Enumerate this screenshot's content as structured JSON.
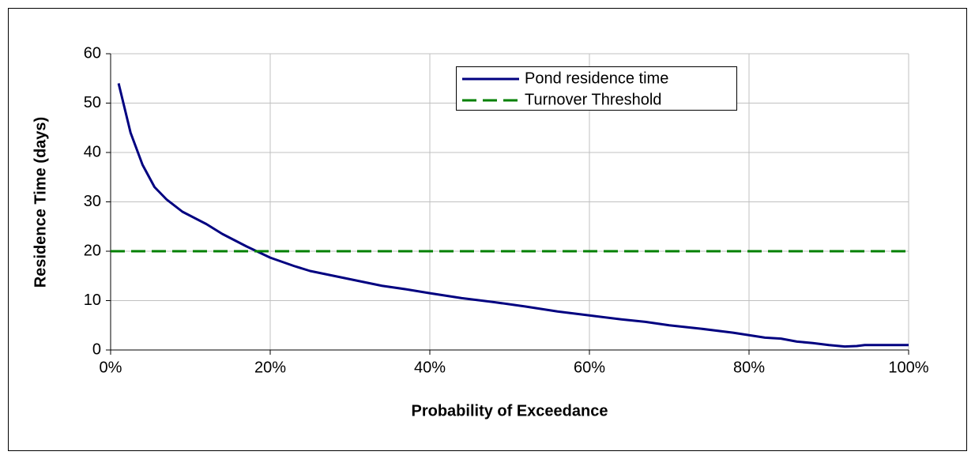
{
  "chart_data": {
    "type": "line",
    "xlabel": "Probability of Exceedance",
    "ylabel": "Residence Time (days)",
    "series": [
      {
        "name": "Pond residence time",
        "color": "#000080",
        "style": "solid",
        "x": [
          1,
          2.5,
          4,
          5.5,
          7,
          9,
          12,
          14,
          17,
          20,
          23,
          25,
          28,
          31,
          34,
          37,
          40,
          44,
          48,
          52,
          56,
          60,
          64,
          67,
          70,
          74,
          78,
          82,
          84,
          86,
          88,
          90,
          92,
          93.5,
          94.5,
          100
        ],
        "values": [
          54,
          44,
          37.5,
          33,
          30.5,
          28,
          25.5,
          23.5,
          21,
          18.7,
          17,
          16,
          15,
          14,
          13,
          12.3,
          11.5,
          10.5,
          9.7,
          8.8,
          7.8,
          7,
          6.2,
          5.7,
          5,
          4.3,
          3.5,
          2.5,
          2.3,
          1.7,
          1.4,
          1,
          0.7,
          0.8,
          1,
          1
        ]
      },
      {
        "name": "Turnover Threshold",
        "color": "#008000",
        "style": "dashed",
        "x": [
          0,
          100
        ],
        "values": [
          20,
          20
        ]
      }
    ],
    "xlim": [
      0,
      100
    ],
    "xticks": [
      {
        "value": 0,
        "label": "0%"
      },
      {
        "value": 20,
        "label": "20%"
      },
      {
        "value": 40,
        "label": "40%"
      },
      {
        "value": 60,
        "label": "60%"
      },
      {
        "value": 80,
        "label": "80%"
      },
      {
        "value": 100,
        "label": "100%"
      }
    ],
    "ylim": [
      0,
      60
    ],
    "yticks": [
      0,
      10,
      20,
      30,
      40,
      50,
      60
    ],
    "grid": true,
    "legend": "upper center"
  }
}
